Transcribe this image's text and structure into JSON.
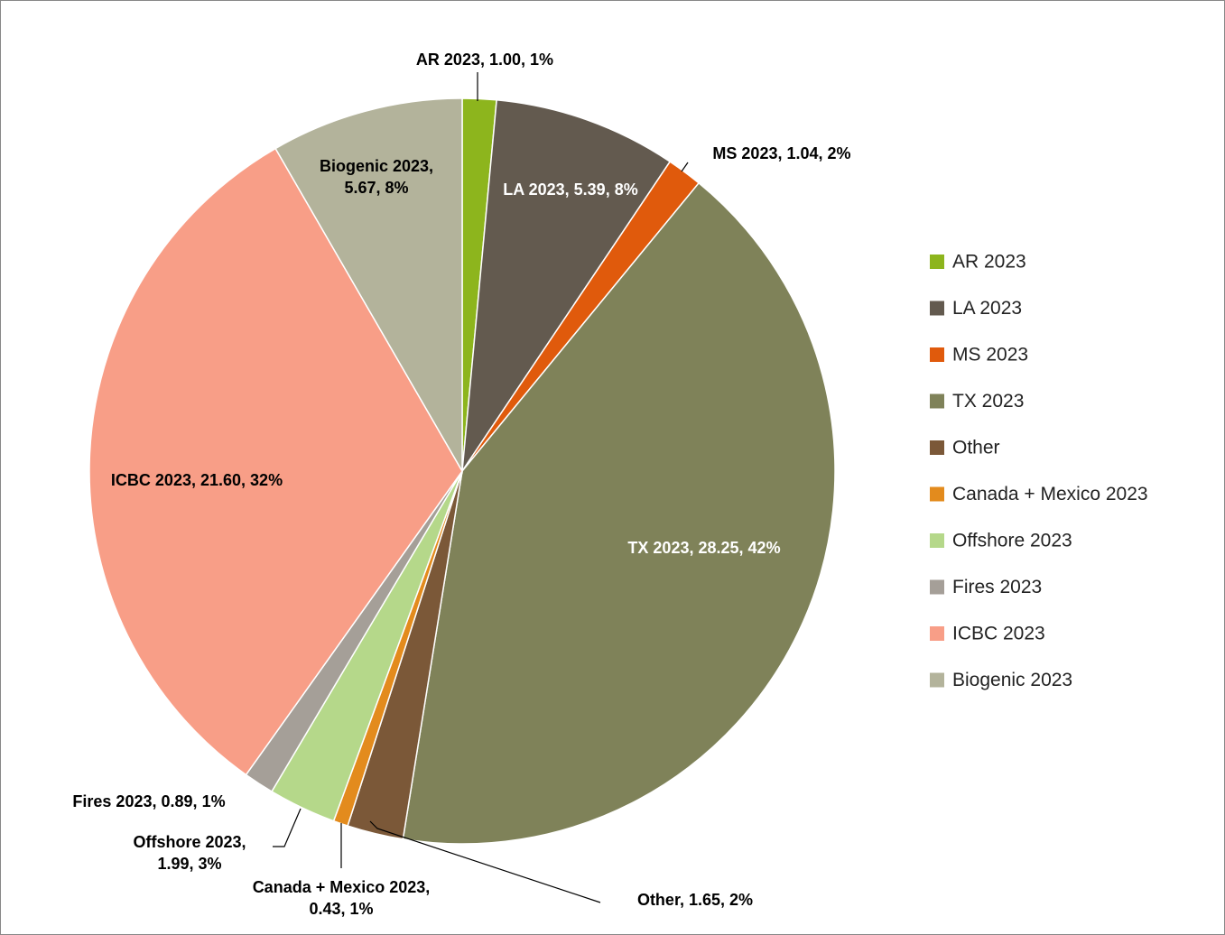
{
  "chart_data": {
    "type": "pie",
    "categories": [
      "AR 2023",
      "LA 2023",
      "MS 2023",
      "TX 2023",
      "Other",
      "Canada + Mexico 2023",
      "Offshore 2023",
      "Fires 2023",
      "ICBC 2023",
      "Biogenic 2023"
    ],
    "values": [
      1.0,
      5.39,
      1.04,
      28.25,
      1.65,
      0.43,
      1.99,
      0.89,
      21.6,
      5.67
    ],
    "value_labels": [
      "1.00",
      "5.39",
      "1.04",
      "28.25",
      "1.65",
      "0.43",
      "1.99",
      "0.89",
      "21.60",
      "5.67"
    ],
    "percent_labels": [
      "1%",
      "8%",
      "2%",
      "42%",
      "2%",
      "1%",
      "3%",
      "1%",
      "32%",
      "8%"
    ],
    "data_label_separator": ", ",
    "colors": [
      "#8db51d",
      "#635a4f",
      "#e05a0c",
      "#7f8259",
      "#7b5838",
      "#e38b1d",
      "#b5d88a",
      "#a59f98",
      "#f89e87",
      "#b3b39b"
    ],
    "legend": "right"
  }
}
